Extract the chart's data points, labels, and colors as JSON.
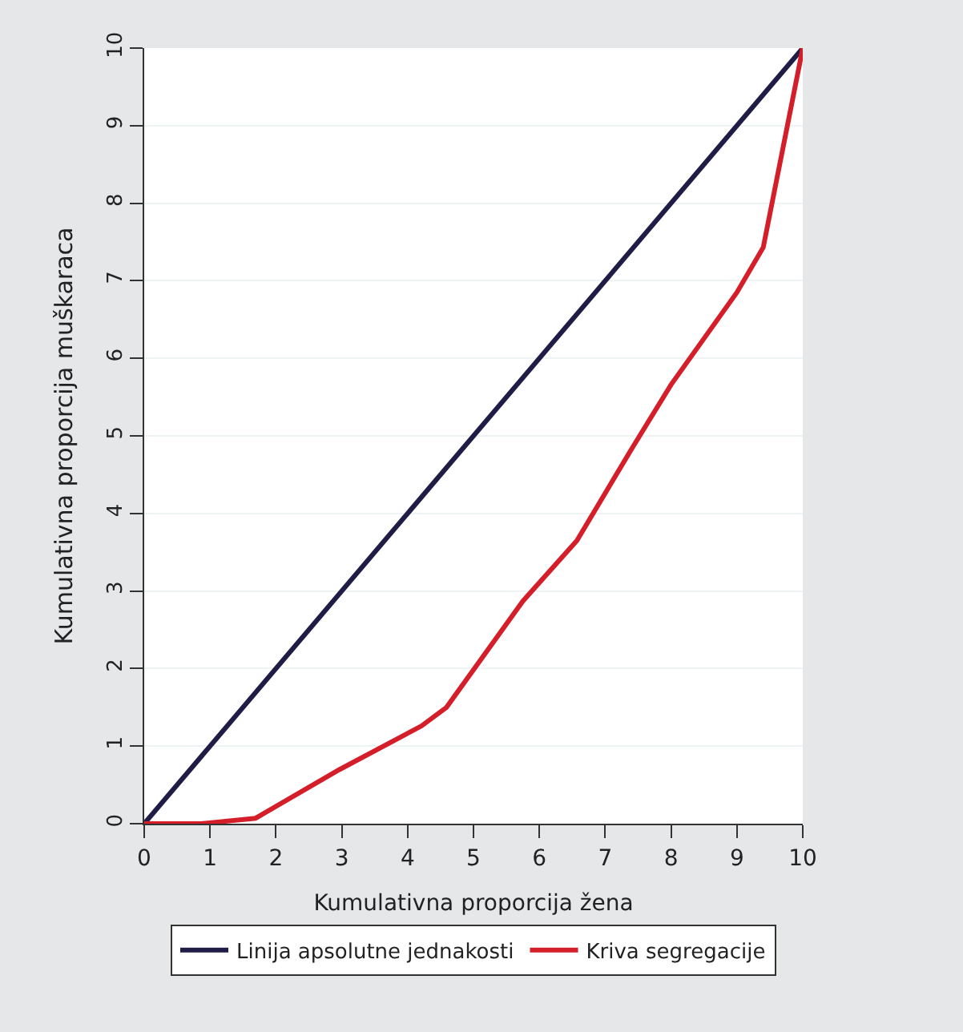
{
  "chart_data": {
    "type": "line",
    "xlabel": "Kumulativna proporcija žena",
    "ylabel": "Kumulativna proporcija muškaraca",
    "xlim": [
      0,
      10
    ],
    "ylim": [
      0,
      10
    ],
    "xticks": [
      0,
      1,
      2,
      3,
      4,
      5,
      6,
      7,
      8,
      9,
      10
    ],
    "yticks": [
      0,
      1,
      2,
      3,
      4,
      5,
      6,
      7,
      8,
      9,
      10
    ],
    "grid": "y",
    "legend": "bottom",
    "marker": "none",
    "line_style": "solid",
    "series": [
      {
        "name": "Linija apsolutne jednakosti",
        "color": "#1f1d45",
        "x": [
          0,
          10
        ],
        "values": [
          0,
          10
        ]
      },
      {
        "name": "Kriva segregacije",
        "color": "#d41f2a",
        "x": [
          0,
          0.86,
          1.69,
          2.97,
          4.21,
          4.59,
          5.75,
          6.57,
          7.4,
          8.0,
          9.0,
          9.4,
          10
        ],
        "values": [
          0,
          0,
          0.07,
          0.7,
          1.26,
          1.5,
          2.87,
          3.65,
          4.83,
          5.66,
          6.85,
          7.43,
          10
        ]
      }
    ]
  }
}
